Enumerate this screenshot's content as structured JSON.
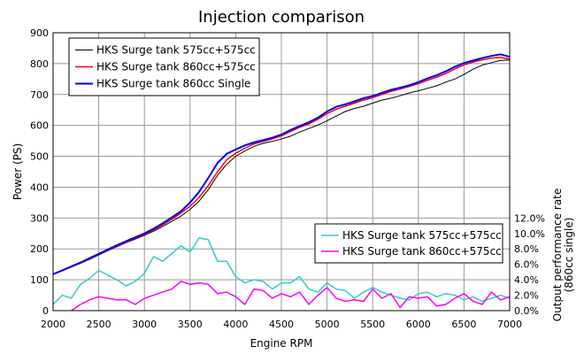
{
  "chart_data": {
    "type": "line",
    "title": "Injection comparison",
    "xlabel": "Engine RPM",
    "ylabel": "Power  (PS)",
    "y2label": [
      "Output performance rate",
      "(860cc single)"
    ],
    "xlim": [
      2000,
      7000
    ],
    "ylim": [
      0,
      900
    ],
    "y2lim": [
      0,
      36
    ],
    "grid": true,
    "xticks": [
      "2000",
      "2500",
      "3000",
      "3500",
      "4000",
      "4500",
      "5000",
      "5500",
      "6000",
      "6500",
      "7000"
    ],
    "yticks": [
      "0",
      "100",
      "200",
      "300",
      "400",
      "500",
      "600",
      "700",
      "800",
      "900"
    ],
    "y2ticks": [
      "0.0%",
      "2.0%",
      "4.0%",
      "6.0%",
      "8.0%",
      "10.0%",
      "12.0%"
    ],
    "x_start": 2000,
    "x_step": 100,
    "power_series": [
      {
        "name": "HKS Surge tank 575cc+575cc",
        "color": "#000000",
        "width": 1,
        "values": [
          117,
          129,
          141,
          153,
          166,
          180,
          194,
          207,
          220,
          232,
          244,
          257,
          273,
          289,
          306,
          328,
          355,
          392,
          438,
          474,
          500,
          517,
          532,
          542,
          548,
          556,
          565,
          578,
          590,
          601,
          615,
          630,
          645,
          655,
          662,
          672,
          682,
          688,
          696,
          705,
          712,
          720,
          728,
          740,
          750,
          765,
          782,
          795,
          803,
          810,
          812
        ]
      },
      {
        "name": "HKS Surge tank 860cc+575cc",
        "color": "#ff0000",
        "width": 1.5,
        "values": [
          118,
          130,
          142,
          155,
          168,
          182,
          196,
          209,
          222,
          235,
          247,
          261,
          278,
          296,
          316,
          338,
          367,
          405,
          450,
          488,
          510,
          526,
          540,
          548,
          556,
          566,
          580,
          594,
          605,
          620,
          638,
          652,
          662,
          672,
          682,
          690,
          700,
          710,
          718,
          726,
          735,
          746,
          756,
          768,
          783,
          796,
          805,
          812,
          818,
          820,
          815
        ]
      },
      {
        "name": "HKS Surge tank 860cc Single",
        "color": "#0000ff",
        "width": 2,
        "values": [
          118,
          130,
          143,
          156,
          170,
          184,
          198,
          212,
          225,
          238,
          250,
          265,
          283,
          302,
          322,
          350,
          385,
          430,
          478,
          508,
          522,
          535,
          545,
          552,
          560,
          570,
          585,
          598,
          610,
          625,
          645,
          660,
          668,
          678,
          688,
          695,
          705,
          715,
          722,
          730,
          740,
          752,
          762,
          775,
          790,
          802,
          810,
          818,
          825,
          830,
          822
        ]
      }
    ],
    "rate_series": [
      {
        "name": "HKS Surge tank 575cc+575cc",
        "color": "#33cccc",
        "x_from": 2000,
        "values": [
          0.8,
          2.0,
          1.6,
          3.4,
          4.2,
          5.2,
          4.6,
          4.0,
          3.2,
          3.8,
          4.8,
          7.0,
          6.4,
          7.4,
          8.4,
          7.6,
          9.4,
          9.2,
          6.4,
          6.4,
          4.4,
          3.6,
          4.0,
          3.8,
          2.8,
          3.6,
          3.6,
          4.4,
          2.8,
          2.4,
          3.6,
          2.8,
          2.6,
          1.6,
          2.4,
          3.0,
          2.4,
          2.0,
          1.6,
          1.4,
          2.2,
          2.4,
          1.8,
          2.2,
          2.0,
          1.4,
          1.8,
          1.2,
          1.6,
          2.0,
          1.6
        ]
      },
      {
        "name": "HKS Surge tank 860cc+575cc",
        "color": "#ff00ff",
        "x_from": 2200,
        "values": [
          0,
          0.8,
          1.4,
          1.8,
          1.6,
          1.4,
          1.4,
          0.8,
          1.6,
          2.0,
          2.4,
          2.8,
          3.8,
          3.4,
          3.6,
          3.4,
          2.2,
          2.4,
          1.8,
          0.8,
          2.8,
          2.6,
          1.6,
          2.2,
          1.8,
          2.4,
          0.8,
          2.0,
          3.0,
          1.6,
          1.2,
          1.4,
          1.2,
          2.8,
          1.6,
          2.2,
          0.4,
          1.8,
          1.6,
          1.8,
          0.6,
          0.8,
          1.6,
          2.2,
          1.2,
          0.8,
          2.4,
          1.4,
          1.8
        ]
      }
    ],
    "legend_placement": [
      "top-left",
      "right-middle"
    ]
  }
}
